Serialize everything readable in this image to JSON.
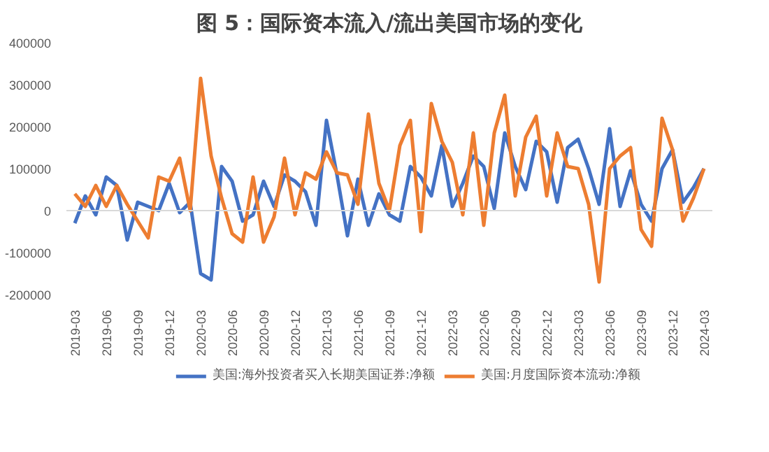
{
  "chart_data": {
    "type": "line",
    "title": "图 5：国际资本流入/流出美国市场的变化",
    "categories": [
      "2019-03",
      null,
      null,
      "2019-06",
      null,
      null,
      "2019-09",
      null,
      null,
      "2019-12",
      null,
      null,
      "2020-03",
      null,
      null,
      "2020-06",
      null,
      null,
      "2020-09",
      null,
      null,
      "2020-12",
      null,
      null,
      "2021-03",
      null,
      null,
      "2021-06",
      null,
      null,
      "2021-09",
      null,
      null,
      "2021-12",
      null,
      null,
      "2022-03",
      null,
      null,
      "2022-06",
      null,
      null,
      "2022-09",
      null,
      null,
      "2022-12",
      null,
      null,
      "2023-03",
      null,
      null,
      "2023-06",
      null,
      null,
      "2023-09",
      null,
      null,
      "2023-12",
      null,
      null,
      "2024-03"
    ],
    "series": [
      {
        "name": "美国:海外投资者买入长期美国证券:净额",
        "color": "#4472c4",
        "values": [
          -30000,
          35000,
          -10000,
          80000,
          60000,
          -70000,
          20000,
          10000,
          0,
          65000,
          -5000,
          20000,
          -150000,
          -165000,
          105000,
          70000,
          -25000,
          -10000,
          70000,
          10000,
          85000,
          70000,
          45000,
          -35000,
          215000,
          85000,
          -60000,
          75000,
          -35000,
          40000,
          -10000,
          -25000,
          105000,
          80000,
          35000,
          155000,
          10000,
          65000,
          130000,
          105000,
          5000,
          185000,
          105000,
          50000,
          165000,
          140000,
          20000,
          150000,
          170000,
          100000,
          15000,
          195000,
          10000,
          95000,
          15000,
          -25000,
          100000,
          145000,
          20000,
          55000,
          100000
        ]
      },
      {
        "name": "美国:月度国际资本流动:净额",
        "color": "#ed7d31",
        "values": [
          40000,
          10000,
          60000,
          10000,
          60000,
          15000,
          -25000,
          -65000,
          80000,
          70000,
          125000,
          0,
          315000,
          130000,
          30000,
          -55000,
          -75000,
          80000,
          -75000,
          -15000,
          125000,
          -10000,
          90000,
          75000,
          140000,
          90000,
          85000,
          15000,
          230000,
          65000,
          0,
          155000,
          215000,
          -50000,
          255000,
          165000,
          115000,
          -10000,
          185000,
          -35000,
          185000,
          275000,
          35000,
          175000,
          225000,
          35000,
          185000,
          105000,
          100000,
          15000,
          -170000,
          100000,
          130000,
          150000,
          -45000,
          -85000,
          220000,
          145000,
          -25000,
          30000,
          100000
        ]
      }
    ],
    "ylim": [
      -200000,
      400000
    ],
    "yticks": [
      -200000,
      -100000,
      0,
      100000,
      200000,
      300000,
      400000
    ],
    "ref_lines": [
      {
        "axis": "y",
        "value": 0,
        "color": "#d9d9d9"
      }
    ],
    "grid": false,
    "legend": "bottom",
    "marker": "none",
    "line_style": "solid"
  }
}
